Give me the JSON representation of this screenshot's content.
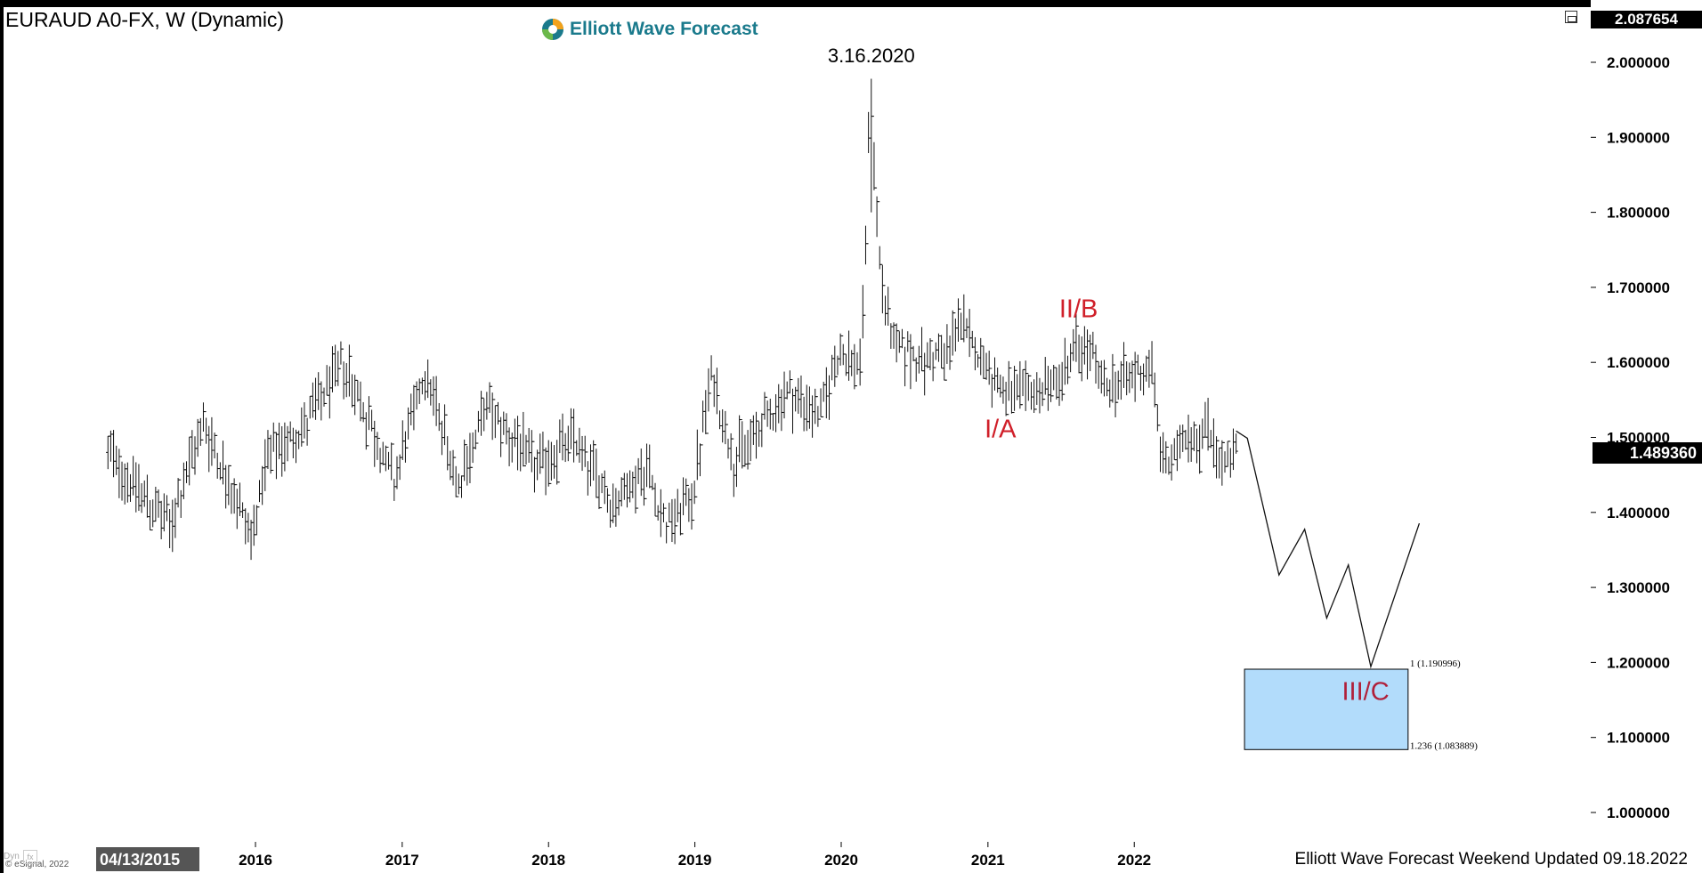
{
  "window": {
    "title": "EURAUD A0-FX, W (Dynamic)",
    "logo_text": "Elliott Wave Forecast",
    "footer": "Elliott Wave Forecast Weekend Updated 09.18.2022",
    "esignal": "© eSignal, 2022",
    "top_price": "2.087654",
    "last_price": "1.489360",
    "date_marker": "04/13/2015",
    "dyn_label": "Dyn"
  },
  "chart_data": {
    "type": "line",
    "ylim": [
      0.92,
      2.087654
    ],
    "yticks": [
      "2.000000",
      "1.900000",
      "1.800000",
      "1.700000",
      "1.600000",
      "1.500000",
      "1.400000",
      "1.300000",
      "1.200000",
      "1.100000",
      "1.000000"
    ],
    "xticks": [
      "2016",
      "2017",
      "2018",
      "2019",
      "2020",
      "2021",
      "2022"
    ],
    "annotations": [
      {
        "text": "3.16.2020",
        "date": "2020-03-16",
        "price": 2.0,
        "color": "#000000"
      },
      {
        "text": "II/B",
        "date": "2021-08-15",
        "price": 1.66,
        "color": "#d0202a"
      },
      {
        "text": "I/A",
        "date": "2021-02-01",
        "price": 1.5,
        "color": "#d0202a"
      },
      {
        "text": "III/C",
        "date": "2023-08-01",
        "price": 1.15,
        "color": "#b0203a"
      }
    ],
    "fib_box": {
      "upper_label": "1 (1.190996)",
      "lower_label": "1.236 (1.083889)",
      "upper": 1.190996,
      "lower": 1.083889,
      "x_start": "2022-10-03",
      "x_end": "2023-11-15",
      "fill": "#b2dcfb",
      "stroke": "#000000"
    },
    "projection": {
      "x": [
        "2022-09-12",
        "2022-10-10",
        "2022-12-28",
        "2023-03-02",
        "2023-04-26",
        "2023-06-19",
        "2023-08-14",
        "2023-12-13"
      ],
      "y": [
        1.5085,
        1.4989,
        1.3166,
        1.3775,
        1.2591,
        1.33,
        1.1944,
        1.3855
      ]
    },
    "anchors": [
      [
        "2014-12-29",
        1.48
      ],
      [
        "2015-06-01",
        1.38
      ],
      [
        "2015-08-24",
        1.52
      ],
      [
        "2015-12-21",
        1.37
      ],
      [
        "2016-02-01",
        1.47
      ],
      [
        "2016-05-09",
        1.52
      ],
      [
        "2016-08-08",
        1.6
      ],
      [
        "2016-12-12",
        1.44
      ],
      [
        "2017-02-27",
        1.59
      ],
      [
        "2017-05-22",
        1.44
      ],
      [
        "2017-07-31",
        1.54
      ],
      [
        "2017-12-04",
        1.46
      ],
      [
        "2018-03-05",
        1.5
      ],
      [
        "2018-06-11",
        1.41
      ],
      [
        "2018-09-03",
        1.46
      ],
      [
        "2018-10-22",
        1.38
      ],
      [
        "2018-12-24",
        1.42
      ],
      [
        "2019-02-11",
        1.58
      ],
      [
        "2019-04-08",
        1.47
      ],
      [
        "2019-05-27",
        1.5
      ],
      [
        "2019-08-19",
        1.56
      ],
      [
        "2019-11-11",
        1.53
      ],
      [
        "2019-12-23",
        1.61
      ],
      [
        "2020-03-09",
        1.59
      ],
      [
        "2020-05-18",
        1.6
      ],
      [
        "2020-06-29",
        1.61
      ],
      [
        "2020-07-27",
        1.6
      ],
      [
        "2020-08-24",
        1.61
      ],
      [
        "2020-09-21",
        1.61
      ],
      [
        "2020-10-19",
        1.66
      ],
      [
        "2020-11-23",
        1.62
      ],
      [
        "2020-12-28",
        1.6
      ],
      [
        "2021-01-25",
        1.57
      ],
      [
        "2021-03-01",
        1.55
      ],
      [
        "2021-04-12",
        1.56
      ],
      [
        "2021-06-14",
        1.57
      ],
      [
        "2021-08-09",
        1.62
      ],
      [
        "2021-09-20",
        1.61
      ],
      [
        "2021-10-18",
        1.56
      ],
      [
        "2021-11-22",
        1.58
      ],
      [
        "2021-12-27",
        1.58
      ],
      [
        "2022-02-14",
        1.6
      ],
      [
        "2022-03-07",
        1.48
      ],
      [
        "2022-04-04",
        1.46
      ],
      [
        "2022-05-09",
        1.51
      ],
      [
        "2022-06-13",
        1.5
      ],
      [
        "2022-07-04",
        1.52
      ],
      [
        "2022-08-01",
        1.47
      ],
      [
        "2022-08-29",
        1.46
      ],
      [
        "2022-09-12",
        1.489
      ]
    ]
  }
}
